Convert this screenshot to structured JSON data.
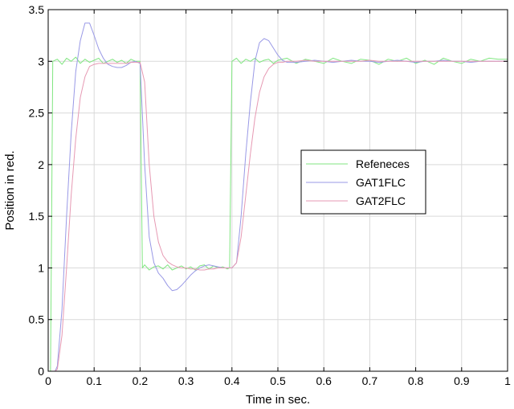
{
  "chart_data": {
    "type": "line",
    "title": "",
    "xlabel": "Time in sec.",
    "ylabel": "Position in red.",
    "xlim": [
      0,
      1
    ],
    "ylim": [
      0,
      3.5
    ],
    "xticks": [
      0,
      0.1,
      0.2,
      0.3,
      0.4,
      0.5,
      0.6,
      0.7,
      0.8,
      0.9,
      1
    ],
    "yticks": [
      0,
      0.5,
      1,
      1.5,
      2,
      2.5,
      3,
      3.5
    ],
    "xtick_labels": [
      "0",
      "0.1",
      "0.2",
      "0.3",
      "0.4",
      "0.5",
      "0.6",
      "0.7",
      "0.8",
      "0.9",
      "1"
    ],
    "ytick_labels": [
      "0",
      "0.5",
      "1",
      "1.5",
      "2",
      "2.5",
      "3",
      "3.5"
    ],
    "grid": true,
    "legend_position": "right-middle",
    "series": [
      {
        "name": "Refeneces",
        "color": "#80e680",
        "x": [
          0,
          0.005,
          0.01,
          0.02,
          0.03,
          0.04,
          0.05,
          0.06,
          0.07,
          0.08,
          0.09,
          0.1,
          0.11,
          0.12,
          0.13,
          0.14,
          0.15,
          0.16,
          0.17,
          0.18,
          0.19,
          0.2,
          0.205,
          0.21,
          0.22,
          0.23,
          0.24,
          0.25,
          0.26,
          0.27,
          0.28,
          0.29,
          0.3,
          0.31,
          0.32,
          0.33,
          0.34,
          0.35,
          0.36,
          0.37,
          0.38,
          0.39,
          0.395,
          0.4,
          0.41,
          0.42,
          0.43,
          0.44,
          0.45,
          0.46,
          0.47,
          0.48,
          0.49,
          0.5,
          0.52,
          0.54,
          0.56,
          0.58,
          0.6,
          0.62,
          0.64,
          0.66,
          0.68,
          0.7,
          0.72,
          0.74,
          0.76,
          0.78,
          0.8,
          0.82,
          0.84,
          0.86,
          0.88,
          0.9,
          0.92,
          0.94,
          0.96,
          0.98,
          1.0
        ],
        "y": [
          0,
          0,
          3.0,
          3.02,
          2.97,
          3.03,
          3.0,
          3.04,
          2.98,
          3.02,
          2.99,
          3.01,
          3.03,
          2.98,
          3.0,
          3.02,
          2.99,
          3.01,
          2.98,
          3.02,
          3.0,
          3.0,
          1.0,
          1.03,
          0.98,
          1.01,
          1.02,
          0.99,
          1.03,
          0.98,
          1.0,
          1.02,
          0.99,
          1.01,
          0.98,
          1.02,
          1.03,
          0.99,
          1.02,
          1.0,
          1.01,
          0.99,
          1.0,
          3.0,
          3.03,
          2.98,
          3.02,
          3.0,
          3.03,
          2.99,
          3.01,
          3.02,
          2.98,
          3.01,
          3.03,
          2.98,
          3.02,
          3.0,
          2.98,
          3.03,
          3.0,
          2.98,
          3.02,
          3.01,
          2.97,
          3.02,
          3.0,
          3.03,
          2.98,
          3.01,
          2.97,
          3.03,
          3.0,
          2.98,
          3.02,
          3.0,
          3.03,
          3.02,
          3.02
        ]
      },
      {
        "name": "GAT1FLC",
        "color": "#9999e6",
        "x": [
          0,
          0.015,
          0.02,
          0.03,
          0.04,
          0.05,
          0.06,
          0.07,
          0.08,
          0.09,
          0.1,
          0.11,
          0.12,
          0.13,
          0.14,
          0.15,
          0.16,
          0.17,
          0.18,
          0.19,
          0.2,
          0.21,
          0.22,
          0.23,
          0.24,
          0.25,
          0.26,
          0.27,
          0.28,
          0.29,
          0.3,
          0.31,
          0.32,
          0.33,
          0.34,
          0.35,
          0.36,
          0.37,
          0.38,
          0.39,
          0.4,
          0.41,
          0.42,
          0.43,
          0.44,
          0.45,
          0.46,
          0.47,
          0.48,
          0.49,
          0.5,
          0.51,
          0.52,
          0.54,
          0.56,
          0.58,
          0.6,
          0.62,
          0.64,
          0.66,
          0.68,
          0.7,
          0.72,
          0.74,
          0.76,
          0.78,
          0.8,
          0.82,
          0.84,
          0.86,
          0.88,
          0.9,
          0.92,
          0.94,
          0.96,
          0.98,
          1.0
        ],
        "y": [
          0,
          0,
          0.05,
          0.6,
          1.5,
          2.3,
          2.9,
          3.2,
          3.37,
          3.37,
          3.25,
          3.12,
          3.03,
          2.97,
          2.95,
          2.94,
          2.94,
          2.96,
          2.99,
          3.0,
          2.98,
          2.0,
          1.3,
          1.05,
          0.95,
          0.9,
          0.83,
          0.78,
          0.79,
          0.83,
          0.88,
          0.93,
          0.97,
          1.0,
          1.02,
          1.03,
          1.02,
          1.01,
          1.0,
          1.0,
          1.0,
          1.05,
          1.5,
          2.1,
          2.6,
          3.0,
          3.18,
          3.22,
          3.2,
          3.13,
          3.06,
          3.01,
          2.99,
          2.99,
          3.0,
          3.01,
          3.0,
          2.99,
          3.0,
          3.01,
          3.0,
          3.0,
          2.99,
          3.0,
          3.01,
          3.0,
          2.99,
          3.0,
          3.0,
          3.01,
          3.0,
          3.0,
          2.99,
          3.0,
          3.0,
          3.0,
          3.0
        ]
      },
      {
        "name": "GAT2FLC",
        "color": "#e699b3",
        "x": [
          0,
          0.015,
          0.02,
          0.03,
          0.04,
          0.05,
          0.06,
          0.07,
          0.08,
          0.09,
          0.1,
          0.11,
          0.12,
          0.13,
          0.14,
          0.15,
          0.16,
          0.17,
          0.18,
          0.19,
          0.2,
          0.21,
          0.22,
          0.23,
          0.24,
          0.25,
          0.26,
          0.27,
          0.28,
          0.29,
          0.3,
          0.31,
          0.32,
          0.33,
          0.34,
          0.35,
          0.36,
          0.37,
          0.38,
          0.39,
          0.4,
          0.41,
          0.42,
          0.43,
          0.44,
          0.45,
          0.46,
          0.47,
          0.48,
          0.49,
          0.5,
          0.51,
          0.52,
          0.54,
          0.56,
          0.58,
          0.6,
          0.62,
          0.64,
          0.66,
          0.68,
          0.7,
          0.72,
          0.74,
          0.76,
          0.78,
          0.8,
          0.82,
          0.84,
          0.86,
          0.88,
          0.9,
          0.92,
          0.94,
          0.96,
          0.98,
          1.0
        ],
        "y": [
          0,
          0,
          0.02,
          0.35,
          1.0,
          1.7,
          2.25,
          2.65,
          2.85,
          2.95,
          2.97,
          2.98,
          2.98,
          2.98,
          2.98,
          2.98,
          2.98,
          2.98,
          2.99,
          2.99,
          2.99,
          2.8,
          2.0,
          1.5,
          1.25,
          1.12,
          1.06,
          1.03,
          1.01,
          1.0,
          1.0,
          0.99,
          0.99,
          0.98,
          0.98,
          0.99,
          0.99,
          1.0,
          1.0,
          1.0,
          1.0,
          1.05,
          1.3,
          1.7,
          2.1,
          2.45,
          2.7,
          2.85,
          2.93,
          2.97,
          2.99,
          2.99,
          3.0,
          3.0,
          3.01,
          3.0,
          3.0,
          3.0,
          3.0,
          3.0,
          3.0,
          3.01,
          3.0,
          3.0,
          3.0,
          3.0,
          3.0,
          3.0,
          3.0,
          3.0,
          3.0,
          3.0,
          3.0,
          3.0,
          3.0,
          3.0,
          3.0
        ]
      }
    ]
  }
}
